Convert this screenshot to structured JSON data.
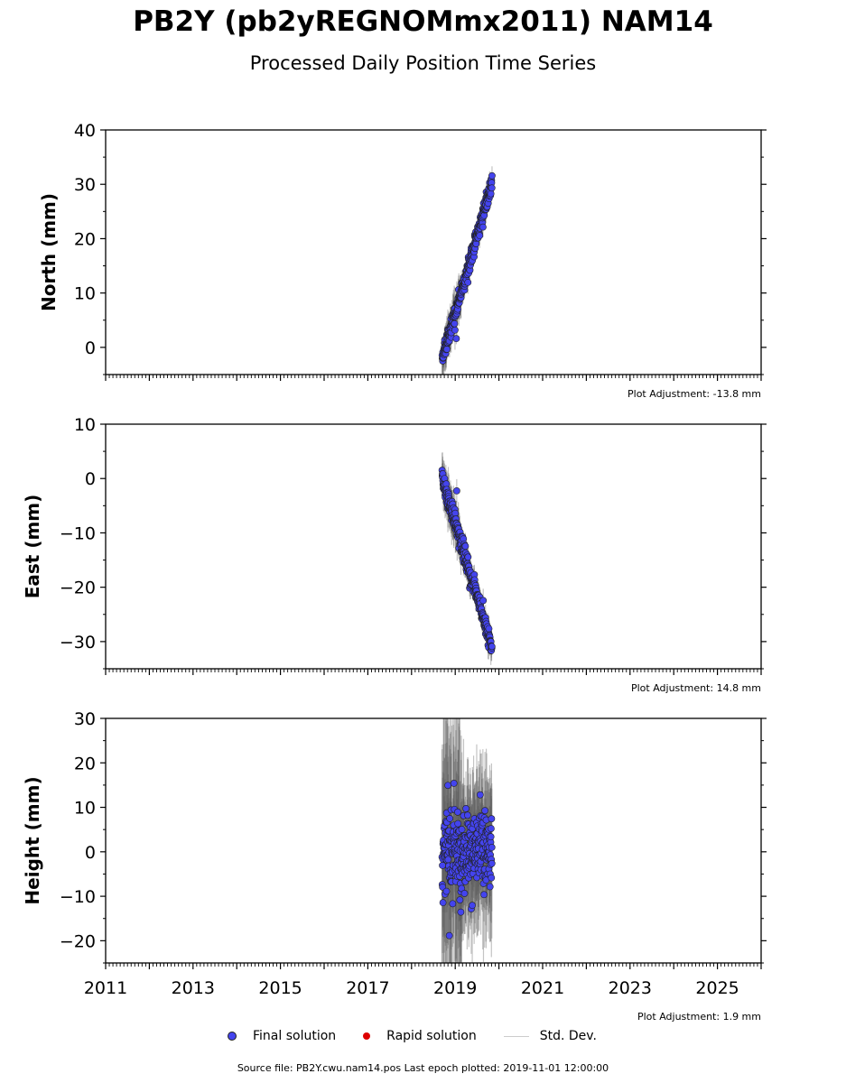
{
  "header": {
    "title": "PB2Y (pb2yREGNOMmx2011) NAM14",
    "subtitle": "Processed Daily Position Time Series"
  },
  "legend": {
    "final": "Final solution",
    "rapid": "Rapid solution",
    "stddev": "Std. Dev."
  },
  "footer": {
    "source": "Source file: PB2Y.cwu.nam14.pos  Last epoch plotted: 2019-11-01 12:00:00"
  },
  "colors": {
    "final": "#4444ee",
    "rapid": "#dd0000",
    "stddev": "#555555"
  },
  "chart_data": [
    {
      "type": "scatter",
      "ylabel": "North (mm)",
      "xlim": [
        2011,
        2026
      ],
      "ylim": [
        -5,
        40
      ],
      "yticks": [
        0,
        10,
        20,
        30,
        40
      ],
      "adjustment": "Plot Adjustment: -13.8 mm",
      "series": [
        {
          "name": "Final solution",
          "x_start": 2018.7,
          "x_end": 2019.84,
          "y_start": -2,
          "y_end": 30,
          "std": 1.6,
          "noise": 1.2
        },
        {
          "name": "Rapid solution",
          "points": []
        }
      ]
    },
    {
      "type": "scatter",
      "ylabel": "East (mm)",
      "xlim": [
        2011,
        2026
      ],
      "ylim": [
        -35,
        10
      ],
      "yticks": [
        -30,
        -20,
        -10,
        0,
        10
      ],
      "adjustment": "Plot Adjustment: 14.8 mm",
      "series": [
        {
          "name": "Final solution",
          "x_start": 2018.7,
          "x_end": 2019.84,
          "y_start": 0,
          "y_end": -31,
          "std": 1.8,
          "noise": 1.3
        },
        {
          "name": "Rapid solution",
          "points": []
        }
      ]
    },
    {
      "type": "scatter",
      "ylabel": "Height (mm)",
      "xlim": [
        2011,
        2026
      ],
      "ylim": [
        -25,
        30
      ],
      "yticks": [
        -20,
        -10,
        0,
        10,
        20,
        30
      ],
      "xticks": [
        2011,
        2013,
        2015,
        2017,
        2019,
        2021,
        2023,
        2025
      ],
      "adjustment": "Plot Adjustment: 1.9 mm",
      "series": [
        {
          "name": "Final solution",
          "x_start": 2018.7,
          "x_end": 2019.84,
          "y_start": 0,
          "y_end": 0,
          "std": 12,
          "noise": 6
        },
        {
          "name": "Rapid solution",
          "points": []
        }
      ]
    }
  ]
}
